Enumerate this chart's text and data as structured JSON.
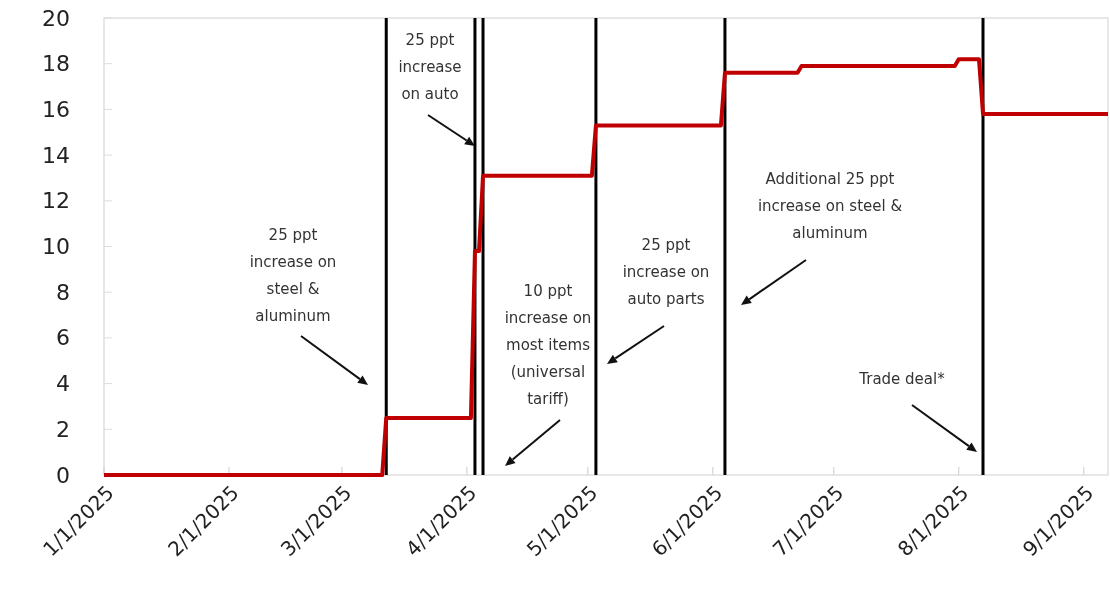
{
  "chart_data": {
    "type": "line",
    "x": [
      "2025-01-01",
      "2025-03-11",
      "2025-03-12",
      "2025-04-02",
      "2025-04-03",
      "2025-04-04",
      "2025-04-05",
      "2025-05-02",
      "2025-05-03",
      "2025-06-03",
      "2025-06-04",
      "2025-06-22",
      "2025-06-23",
      "2025-07-31",
      "2025-08-01",
      "2025-08-06",
      "2025-08-07",
      "2025-09-07"
    ],
    "series": [
      {
        "color": "#c00000",
        "values": [
          0,
          0,
          2.5,
          2.5,
          9.8,
          9.8,
          13.1,
          13.1,
          15.3,
          15.3,
          17.6,
          17.6,
          17.9,
          17.9,
          18.2,
          18.2,
          15.8,
          15.8
        ]
      }
    ],
    "xlim": [
      "2025-01-01",
      "2025-09-07"
    ],
    "xticks": [
      {
        "value": "2025-01-01",
        "label": "1/1/2025"
      },
      {
        "value": "2025-02-01",
        "label": "2/1/2025"
      },
      {
        "value": "2025-03-01",
        "label": "3/1/2025"
      },
      {
        "value": "2025-04-01",
        "label": "4/1/2025"
      },
      {
        "value": "2025-05-01",
        "label": "5/1/2025"
      },
      {
        "value": "2025-06-01",
        "label": "6/1/2025"
      },
      {
        "value": "2025-07-01",
        "label": "7/1/2025"
      },
      {
        "value": "2025-08-01",
        "label": "8/1/2025"
      },
      {
        "value": "2025-09-01",
        "label": "9/1/2025"
      }
    ],
    "ylim": [
      0,
      20
    ],
    "yticks": [
      0,
      2,
      4,
      6,
      8,
      10,
      12,
      14,
      16,
      18,
      20
    ],
    "grid": false,
    "marker": "none",
    "line_style": "solid",
    "ref_lines": [
      {
        "axis": "x",
        "value": "2025-03-12",
        "color": "#000000"
      },
      {
        "axis": "x",
        "value": "2025-04-03",
        "color": "#000000"
      },
      {
        "axis": "x",
        "value": "2025-04-05",
        "color": "#000000"
      },
      {
        "axis": "x",
        "value": "2025-05-03",
        "color": "#000000"
      },
      {
        "axis": "x",
        "value": "2025-06-04",
        "color": "#000000"
      },
      {
        "axis": "x",
        "value": "2025-08-07",
        "color": "#000000"
      }
    ],
    "annotations": [
      "25 ppt\nincrease on\nsteel &\naluminum",
      "25 ppt\nincrease\non auto",
      "10 ppt\nincrease on\nmost items\n(universal\ntariff)",
      "25 ppt\nincrease on\nauto parts",
      "Additional 25 ppt\nincrease on steel &\naluminum",
      "Trade deal*"
    ]
  }
}
